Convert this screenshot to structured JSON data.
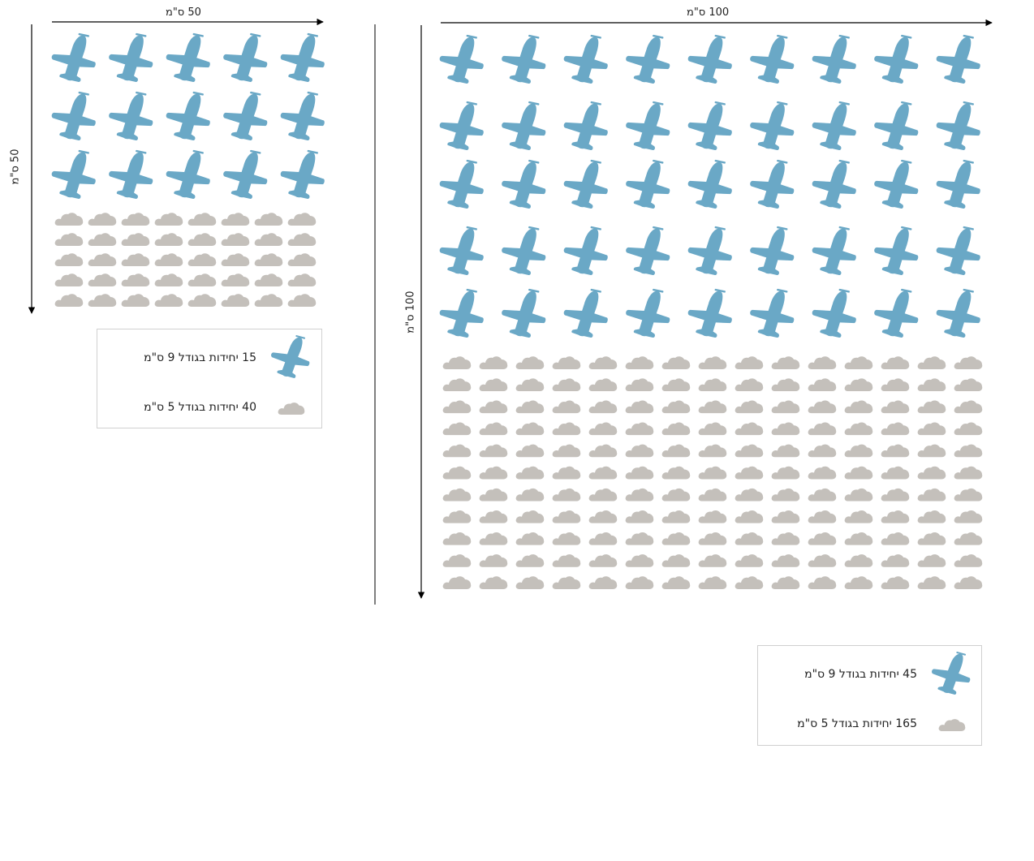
{
  "colors": {
    "plane": "#6aa8c6",
    "cloud": "#c4c0bb",
    "line": "#000000",
    "divider": "#555555"
  },
  "small_panel": {
    "width_label": "50 ס\"מ",
    "height_label": "50 ס\"מ",
    "plane_rows": 3,
    "plane_cols": 5,
    "cloud_rows": 5,
    "cloud_cols": 8,
    "legend": [
      {
        "icon": "plane-icon",
        "text": "15 יחידות בגודל 9 ס\"מ"
      },
      {
        "icon": "cloud-icon",
        "text": "40 יחידות בגודל 5 ס\"מ"
      }
    ]
  },
  "large_panel": {
    "width_label": "100 ס\"מ",
    "height_label": "100 ס\"מ",
    "plane_rows": 5,
    "plane_cols": 9,
    "cloud_rows": 11,
    "cloud_cols": 15,
    "legend": [
      {
        "icon": "plane-icon",
        "text": "45 יחידות בגודל 9 ס\"מ"
      },
      {
        "icon": "cloud-icon",
        "text": "165 יחידות בגודל 5 ס\"מ"
      }
    ]
  }
}
